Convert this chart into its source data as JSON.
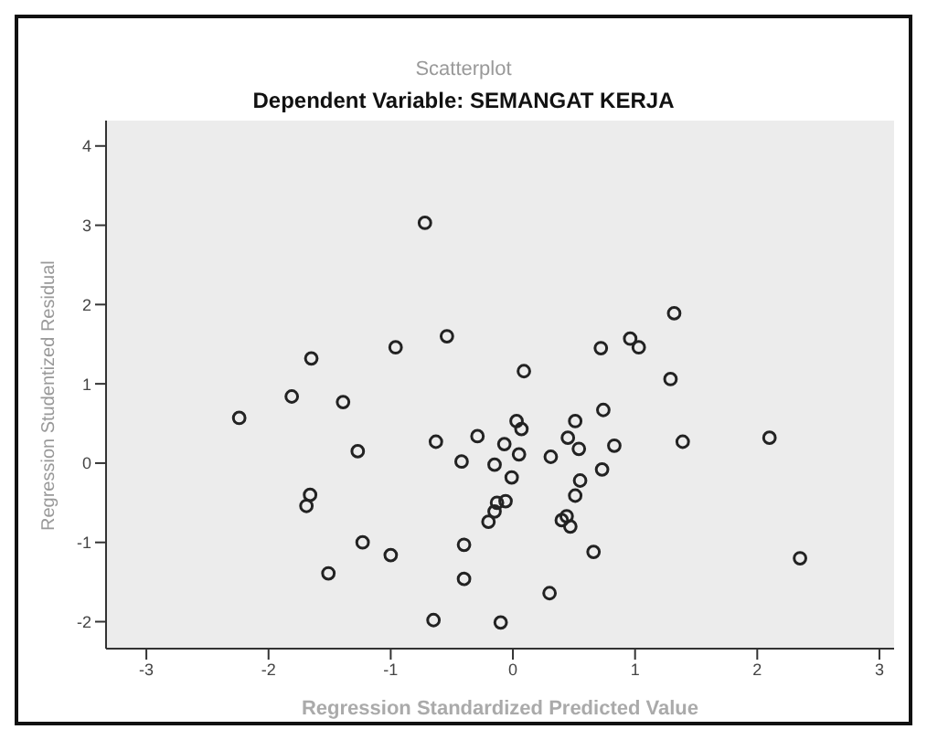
{
  "chart_data": {
    "type": "scatter",
    "title": "Scatterplot",
    "subtitle": "Dependent Variable: SEMANGAT KERJA",
    "xlabel": "Regression Standardized Predicted Value",
    "ylabel": "Regression Studentized Residual",
    "xlim": [
      -3.33,
      3.12
    ],
    "ylim": [
      -2.34,
      4.32
    ],
    "xticks": [
      -3,
      -2,
      -1,
      0,
      1,
      2,
      3
    ],
    "yticks": [
      -2,
      -1,
      0,
      1,
      2,
      3,
      4
    ],
    "grid": false,
    "marker": "circle",
    "legend": false,
    "series": [
      {
        "color": "#222222",
        "x": [
          -0.72,
          -0.54,
          -0.96,
          -1.65,
          -1.81,
          -1.39,
          -2.24,
          -1.27,
          -0.63,
          1.32,
          0.72,
          0.96,
          1.03,
          0.09,
          1.29,
          0.74,
          0.51,
          0.03,
          0.07,
          -0.29,
          -0.07,
          0.45,
          0.54,
          0.83,
          1.39,
          2.1,
          0.05,
          -0.42,
          -0.15,
          0.31,
          -0.01,
          0.73,
          0.55,
          0.51,
          -0.06,
          -0.13,
          -0.15,
          -0.2,
          0.44,
          0.4,
          0.47,
          -0.4,
          0.66,
          2.35,
          -0.4,
          0.3,
          -0.65,
          -0.1,
          -1.66,
          -1.69,
          -1.23,
          -1.0,
          -1.51
        ],
        "values": [
          3.03,
          1.6,
          1.46,
          1.32,
          0.84,
          0.77,
          0.57,
          0.15,
          0.27,
          1.89,
          1.45,
          1.57,
          1.46,
          1.16,
          1.06,
          0.67,
          0.53,
          0.53,
          0.43,
          0.34,
          0.24,
          0.32,
          0.18,
          0.22,
          0.27,
          0.32,
          0.11,
          0.02,
          -0.02,
          0.08,
          -0.18,
          -0.08,
          -0.22,
          -0.41,
          -0.48,
          -0.5,
          -0.61,
          -0.74,
          -0.67,
          -0.72,
          -0.8,
          -1.03,
          -1.12,
          -1.2,
          -1.46,
          -1.64,
          -1.98,
          -2.01,
          -0.4,
          -0.54,
          -1.0,
          -1.16,
          -1.39
        ]
      }
    ]
  }
}
